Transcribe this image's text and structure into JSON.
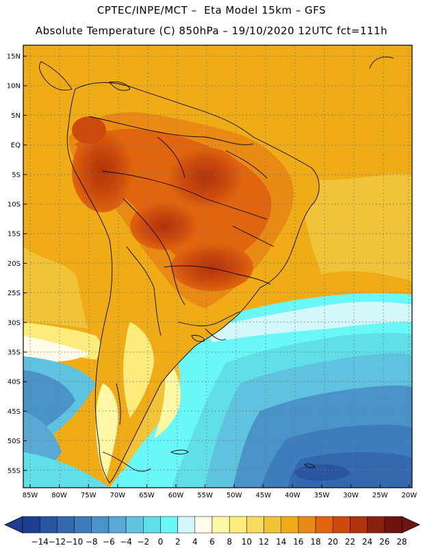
{
  "header": {
    "line1": "CPTEC/INPE/MCT –  Eta Model 15km – GFS",
    "line2": "Absolute Temperature (C) 850hPa – 19/10/2020 12UTC fct=111h"
  },
  "map": {
    "lat_labels": [
      "15N",
      "10N",
      "5N",
      "EQ",
      "5S",
      "10S",
      "15S",
      "20S",
      "25S",
      "30S",
      "35S",
      "40S",
      "45S",
      "50S",
      "55S"
    ],
    "lon_labels": [
      "85W",
      "80W",
      "75W",
      "70W",
      "65W",
      "60W",
      "55W",
      "50W",
      "45W",
      "40W",
      "35W",
      "30W",
      "25W",
      "20W"
    ]
  },
  "colorbar": {
    "labels": [
      "-14",
      "-12",
      "-10",
      "-8",
      "-6",
      "-4",
      "-2",
      "0",
      "2",
      "4",
      "6",
      "8",
      "10",
      "12",
      "14",
      "16",
      "18",
      "20",
      "22",
      "24",
      "26",
      "28"
    ],
    "colors": [
      "#1d3f8f",
      "#2855a0",
      "#3368ae",
      "#3d7dbd",
      "#4a93c9",
      "#58a9d4",
      "#5fc2de",
      "#60dfe8",
      "#6af7f7",
      "#d4f7f9",
      "#fffbe8",
      "#fdf7a6",
      "#fbec7c",
      "#f7da5f",
      "#f1c338",
      "#efac16",
      "#e88a14",
      "#e0650e",
      "#cc4a0c",
      "#b0330c",
      "#8c2010",
      "#6e1410"
    ],
    "under_color": "#1d3f8f",
    "over_color": "#6e1410"
  }
}
